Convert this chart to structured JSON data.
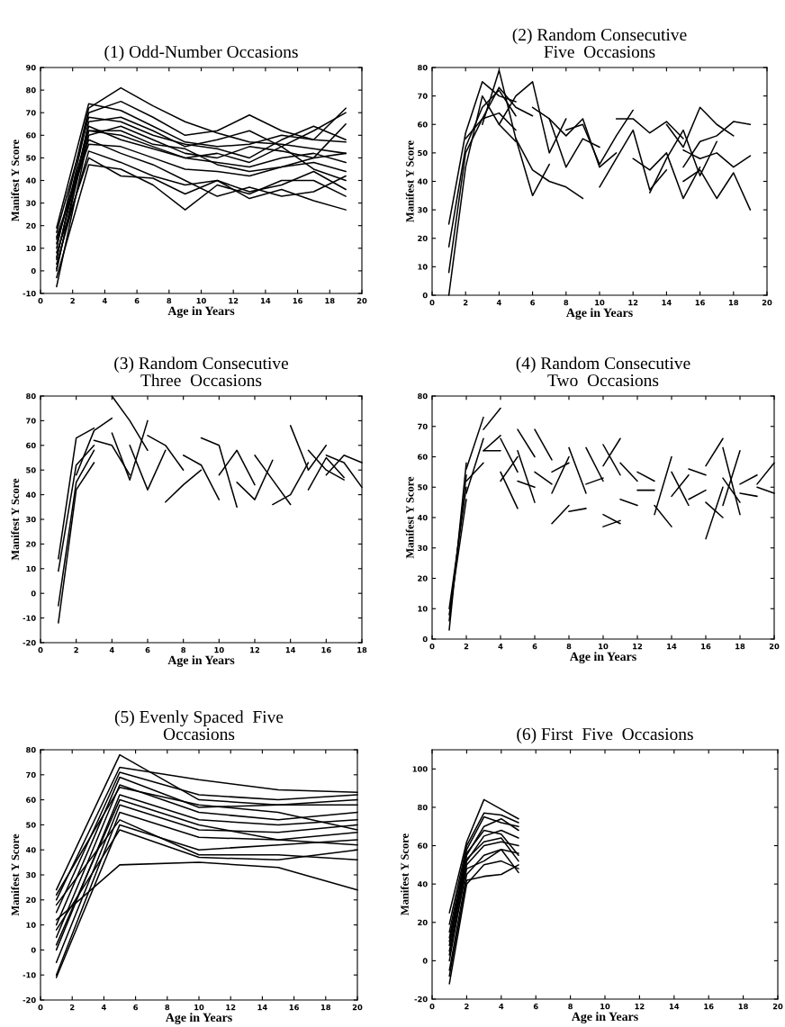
{
  "chart_data": [
    {
      "type": "line",
      "title": "(1) Odd-Number Occasions",
      "xlabel": "Age in Years",
      "ylabel": "Manifest Y Score",
      "xlim": [
        0,
        20
      ],
      "ylim": [
        -10,
        90
      ],
      "xticks": [
        0,
        2,
        4,
        6,
        8,
        10,
        12,
        14,
        16,
        18,
        20
      ],
      "yticks": [
        -10,
        0,
        10,
        20,
        30,
        40,
        50,
        60,
        70,
        80,
        90
      ],
      "series": [
        {
          "color": "#000000",
          "x": [
            1,
            3,
            5,
            7,
            9,
            11,
            13,
            15,
            17,
            19
          ],
          "values": [
            19,
            74,
            71,
            64,
            57,
            55,
            56,
            60,
            58,
            57
          ]
        },
        {
          "color": "#000000",
          "x": [
            1,
            3,
            5,
            7,
            9,
            11,
            13,
            15,
            17,
            19
          ],
          "values": [
            10,
            72,
            81,
            73,
            66,
            61,
            57,
            56,
            54,
            52
          ]
        },
        {
          "color": "#000000",
          "x": [
            1,
            3,
            5,
            7,
            9,
            11,
            13,
            15,
            17,
            19
          ],
          "values": [
            5,
            70,
            75,
            68,
            60,
            62,
            69,
            62,
            58,
            72
          ]
        },
        {
          "color": "#000000",
          "x": [
            1,
            3,
            5,
            7,
            9,
            11,
            13,
            15,
            17,
            19
          ],
          "values": [
            0,
            66,
            68,
            62,
            55,
            58,
            62,
            55,
            62,
            70
          ]
        },
        {
          "color": "#000000",
          "x": [
            1,
            3,
            5,
            7,
            9,
            11,
            13,
            15,
            17,
            19
          ],
          "values": [
            -7,
            60,
            64,
            58,
            52,
            50,
            55,
            53,
            50,
            65
          ]
        },
        {
          "color": "#000000",
          "x": [
            1,
            3,
            5,
            7,
            9,
            11,
            13,
            15,
            17,
            19
          ],
          "values": [
            12,
            62,
            60,
            55,
            50,
            48,
            46,
            50,
            52,
            48
          ]
        },
        {
          "color": "#000000",
          "x": [
            1,
            3,
            5,
            7,
            9,
            11,
            13,
            15,
            17,
            19
          ],
          "values": [
            15,
            56,
            55,
            50,
            45,
            44,
            42,
            46,
            48,
            44
          ]
        },
        {
          "color": "#000000",
          "x": [
            1,
            3,
            5,
            7,
            9,
            11,
            13,
            15,
            17,
            19
          ],
          "values": [
            3,
            53,
            48,
            42,
            38,
            40,
            35,
            38,
            44,
            36
          ]
        },
        {
          "color": "#000000",
          "x": [
            1,
            3,
            5,
            7,
            9,
            11,
            13,
            15,
            17,
            19
          ],
          "values": [
            8,
            50,
            42,
            41,
            34,
            40,
            32,
            36,
            31,
            27
          ]
        },
        {
          "color": "#000000",
          "x": [
            1,
            3,
            5,
            7,
            9,
            11,
            13,
            15,
            17,
            19
          ],
          "values": [
            -3,
            47,
            45,
            38,
            27,
            38,
            34,
            40,
            40,
            33
          ]
        },
        {
          "color": "#000000",
          "x": [
            1,
            3,
            5,
            7,
            9,
            11,
            13,
            15,
            17,
            19
          ],
          "values": [
            14,
            58,
            52,
            47,
            40,
            33,
            37,
            33,
            35,
            42
          ]
        },
        {
          "color": "#000000",
          "x": [
            1,
            3,
            5,
            7,
            9,
            11,
            13,
            15,
            17,
            19
          ],
          "values": [
            6,
            64,
            58,
            54,
            50,
            52,
            48,
            55,
            45,
            40
          ]
        },
        {
          "color": "#000000",
          "x": [
            1,
            3,
            5,
            7,
            9,
            11,
            13,
            15,
            17,
            19
          ],
          "values": [
            17,
            68,
            66,
            60,
            56,
            54,
            50,
            58,
            64,
            58
          ]
        },
        {
          "color": "#000000",
          "x": [
            1,
            3,
            5,
            7,
            9,
            11,
            13,
            15,
            17,
            19
          ],
          "values": [
            1,
            62,
            62,
            56,
            54,
            47,
            44,
            46,
            50,
            52
          ]
        }
      ]
    },
    {
      "type": "line",
      "title": "(2) Random Consecutive\nFive  Occasions",
      "xlabel": "Age in Years",
      "ylabel": "Manifest Y Score",
      "xlim": [
        0,
        20
      ],
      "ylim": [
        0,
        80
      ],
      "xticks": [
        0,
        2,
        4,
        6,
        8,
        10,
        12,
        14,
        16,
        18,
        20
      ],
      "yticks": [
        0,
        10,
        20,
        30,
        40,
        50,
        60,
        70,
        80
      ],
      "series": [
        {
          "color": "#000000",
          "x": [
            1,
            2,
            3,
            4,
            5
          ],
          "values": [
            25,
            57,
            75,
            70,
            68
          ]
        },
        {
          "color": "#000000",
          "x": [
            1,
            2,
            3,
            4,
            5
          ],
          "values": [
            17,
            52,
            66,
            72,
            63
          ]
        },
        {
          "color": "#000000",
          "x": [
            1,
            2,
            3,
            4,
            5
          ],
          "values": [
            8,
            50,
            62,
            64,
            58
          ]
        },
        {
          "color": "#000000",
          "x": [
            1,
            2,
            3,
            4,
            5
          ],
          "values": [
            0,
            45,
            70,
            60,
            54
          ]
        },
        {
          "color": "#000000",
          "x": [
            2,
            3,
            4,
            5,
            6
          ],
          "values": [
            55,
            62,
            73,
            66,
            63
          ]
        },
        {
          "color": "#000000",
          "x": [
            3,
            4,
            5,
            6,
            7
          ],
          "values": [
            60,
            79,
            55,
            35,
            46
          ]
        },
        {
          "color": "#000000",
          "x": [
            4,
            5,
            6,
            7,
            8
          ],
          "values": [
            60,
            70,
            75,
            50,
            62
          ]
        },
        {
          "color": "#000000",
          "x": [
            5,
            6,
            7,
            8,
            9
          ],
          "values": [
            55,
            44,
            40,
            38,
            34
          ]
        },
        {
          "color": "#000000",
          "x": [
            6,
            7,
            8,
            9,
            10
          ],
          "values": [
            66,
            62,
            45,
            55,
            52
          ]
        },
        {
          "color": "#000000",
          "x": [
            7,
            8,
            9,
            10,
            11
          ],
          "values": [
            62,
            56,
            62,
            45,
            50
          ]
        },
        {
          "color": "#000000",
          "x": [
            8,
            9,
            10,
            11,
            12
          ],
          "values": [
            58,
            60,
            46,
            56,
            65
          ]
        },
        {
          "color": "#000000",
          "x": [
            10,
            11,
            12,
            13,
            14
          ],
          "values": [
            38,
            48,
            58,
            37,
            44
          ]
        },
        {
          "color": "#000000",
          "x": [
            11,
            12,
            13,
            14,
            15
          ],
          "values": [
            62,
            62,
            57,
            61,
            55
          ]
        },
        {
          "color": "#000000",
          "x": [
            12,
            13,
            14,
            15,
            16
          ],
          "values": [
            48,
            44,
            50,
            34,
            45
          ]
        },
        {
          "color": "#000000",
          "x": [
            13,
            14,
            15,
            16,
            17
          ],
          "values": [
            36,
            48,
            58,
            42,
            54
          ]
        },
        {
          "color": "#000000",
          "x": [
            14,
            15,
            16,
            17,
            18
          ],
          "values": [
            60,
            52,
            66,
            60,
            56
          ]
        },
        {
          "color": "#000000",
          "x": [
            15,
            16,
            17,
            18,
            19
          ],
          "values": [
            45,
            54,
            56,
            61,
            60
          ]
        },
        {
          "color": "#000000",
          "x": [
            15,
            16,
            17,
            18,
            19
          ],
          "values": [
            40,
            44,
            34,
            43,
            30
          ]
        },
        {
          "color": "#000000",
          "x": [
            15,
            16,
            17,
            18,
            19
          ],
          "values": [
            51,
            48,
            50,
            45,
            49
          ]
        }
      ]
    },
    {
      "type": "line",
      "title": "(3) Random Consecutive\nThree  Occasions",
      "xlabel": "Age in Years",
      "ylabel": "Manifest Y Score",
      "xlim": [
        0,
        18
      ],
      "ylim": [
        -20,
        80
      ],
      "xticks": [
        0,
        2,
        4,
        6,
        8,
        10,
        12,
        14,
        16,
        18
      ],
      "yticks": [
        -20,
        -10,
        0,
        10,
        20,
        30,
        40,
        50,
        60,
        70,
        80
      ],
      "series": [
        {
          "color": "#000000",
          "x": [
            1,
            2,
            3
          ],
          "values": [
            14,
            63,
            67
          ]
        },
        {
          "color": "#000000",
          "x": [
            1,
            2,
            3
          ],
          "values": [
            9,
            52,
            60
          ]
        },
        {
          "color": "#000000",
          "x": [
            1,
            2,
            3
          ],
          "values": [
            -5,
            45,
            58
          ]
        },
        {
          "color": "#000000",
          "x": [
            1,
            2,
            3
          ],
          "values": [
            -12,
            42,
            53
          ]
        },
        {
          "color": "#000000",
          "x": [
            2,
            3,
            4
          ],
          "values": [
            48,
            66,
            71
          ]
        },
        {
          "color": "#000000",
          "x": [
            3,
            4,
            5
          ],
          "values": [
            62,
            60,
            48
          ]
        },
        {
          "color": "#000000",
          "x": [
            4,
            5,
            6
          ],
          "values": [
            80,
            70,
            58
          ]
        },
        {
          "color": "#000000",
          "x": [
            4,
            5,
            6
          ],
          "values": [
            65,
            46,
            70
          ]
        },
        {
          "color": "#000000",
          "x": [
            5,
            6,
            7
          ],
          "values": [
            60,
            42,
            58
          ]
        },
        {
          "color": "#000000",
          "x": [
            6,
            7,
            8
          ],
          "values": [
            64,
            60,
            50
          ]
        },
        {
          "color": "#000000",
          "x": [
            7,
            8,
            9
          ],
          "values": [
            37,
            44,
            50
          ]
        },
        {
          "color": "#000000",
          "x": [
            8,
            9,
            10
          ],
          "values": [
            56,
            52,
            38
          ]
        },
        {
          "color": "#000000",
          "x": [
            9,
            10,
            11
          ],
          "values": [
            63,
            60,
            35
          ]
        },
        {
          "color": "#000000",
          "x": [
            10,
            11,
            12
          ],
          "values": [
            48,
            58,
            44
          ]
        },
        {
          "color": "#000000",
          "x": [
            11,
            12,
            13
          ],
          "values": [
            45,
            38,
            54
          ]
        },
        {
          "color": "#000000",
          "x": [
            12,
            13,
            14
          ],
          "values": [
            56,
            46,
            36
          ]
        },
        {
          "color": "#000000",
          "x": [
            13,
            14,
            15
          ],
          "values": [
            36,
            40,
            53
          ]
        },
        {
          "color": "#000000",
          "x": [
            14,
            15,
            16
          ],
          "values": [
            68,
            50,
            60
          ]
        },
        {
          "color": "#000000",
          "x": [
            15,
            16,
            17
          ],
          "values": [
            42,
            55,
            47
          ]
        },
        {
          "color": "#000000",
          "x": [
            15,
            16,
            17
          ],
          "values": [
            58,
            50,
            46
          ]
        },
        {
          "color": "#000000",
          "x": [
            16,
            17,
            18
          ],
          "values": [
            56,
            53,
            43
          ]
        },
        {
          "color": "#000000",
          "x": [
            16,
            17,
            18
          ],
          "values": [
            48,
            56,
            53
          ]
        }
      ]
    },
    {
      "type": "line",
      "title": "(4) Random Consecutive\nTwo  Occasions",
      "xlabel": "Age in Years",
      "ylabel": "Manifest Y Score",
      "xlim": [
        0,
        20
      ],
      "ylim": [
        0,
        80
      ],
      "xticks": [
        0,
        2,
        4,
        6,
        8,
        10,
        12,
        14,
        16,
        18,
        20
      ],
      "yticks": [
        0,
        10,
        20,
        30,
        40,
        50,
        60,
        70,
        80
      ],
      "series": [
        {
          "color": "#000000",
          "x": [
            1,
            2
          ],
          "values": [
            3,
            58
          ]
        },
        {
          "color": "#000000",
          "x": [
            1,
            2
          ],
          "values": [
            6,
            54
          ]
        },
        {
          "color": "#000000",
          "x": [
            1,
            2
          ],
          "values": [
            10,
            50
          ]
        },
        {
          "color": "#000000",
          "x": [
            1,
            2
          ],
          "values": [
            8,
            46
          ]
        },
        {
          "color": "#000000",
          "x": [
            2,
            3
          ],
          "values": [
            56,
            73
          ]
        },
        {
          "color": "#000000",
          "x": [
            2,
            3
          ],
          "values": [
            52,
            58
          ]
        },
        {
          "color": "#000000",
          "x": [
            2,
            3
          ],
          "values": [
            48,
            66
          ]
        },
        {
          "color": "#000000",
          "x": [
            3,
            4
          ],
          "values": [
            69,
            76
          ]
        },
        {
          "color": "#000000",
          "x": [
            3,
            4
          ],
          "values": [
            62,
            62
          ]
        },
        {
          "color": "#000000",
          "x": [
            3,
            4
          ],
          "values": [
            62,
            67
          ]
        },
        {
          "color": "#000000",
          "x": [
            4,
            5
          ],
          "values": [
            66,
            55
          ]
        },
        {
          "color": "#000000",
          "x": [
            4,
            5
          ],
          "values": [
            55,
            43
          ]
        },
        {
          "color": "#000000",
          "x": [
            4,
            5
          ],
          "values": [
            52,
            60
          ]
        },
        {
          "color": "#000000",
          "x": [
            5,
            6
          ],
          "values": [
            69,
            60
          ]
        },
        {
          "color": "#000000",
          "x": [
            5,
            6
          ],
          "values": [
            62,
            45
          ]
        },
        {
          "color": "#000000",
          "x": [
            5,
            6
          ],
          "values": [
            52,
            50
          ]
        },
        {
          "color": "#000000",
          "x": [
            6,
            7
          ],
          "values": [
            69,
            59
          ]
        },
        {
          "color": "#000000",
          "x": [
            6,
            7
          ],
          "values": [
            55,
            51
          ]
        },
        {
          "color": "#000000",
          "x": [
            7,
            8
          ],
          "values": [
            38,
            44
          ]
        },
        {
          "color": "#000000",
          "x": [
            7,
            8
          ],
          "values": [
            48,
            60
          ]
        },
        {
          "color": "#000000",
          "x": [
            7,
            8
          ],
          "values": [
            55,
            58
          ]
        },
        {
          "color": "#000000",
          "x": [
            8,
            9
          ],
          "values": [
            42,
            43
          ]
        },
        {
          "color": "#000000",
          "x": [
            8,
            9
          ],
          "values": [
            63,
            48
          ]
        },
        {
          "color": "#000000",
          "x": [
            9,
            10
          ],
          "values": [
            63,
            52
          ]
        },
        {
          "color": "#000000",
          "x": [
            9,
            10
          ],
          "values": [
            51,
            53
          ]
        },
        {
          "color": "#000000",
          "x": [
            10,
            11
          ],
          "values": [
            64,
            54
          ]
        },
        {
          "color": "#000000",
          "x": [
            10,
            11
          ],
          "values": [
            41,
            38
          ]
        },
        {
          "color": "#000000",
          "x": [
            10,
            11
          ],
          "values": [
            37,
            39
          ]
        },
        {
          "color": "#000000",
          "x": [
            10,
            11
          ],
          "values": [
            57,
            66
          ]
        },
        {
          "color": "#000000",
          "x": [
            11,
            12
          ],
          "values": [
            58,
            52
          ]
        },
        {
          "color": "#000000",
          "x": [
            11,
            12
          ],
          "values": [
            46,
            44
          ]
        },
        {
          "color": "#000000",
          "x": [
            12,
            13
          ],
          "values": [
            55,
            52
          ]
        },
        {
          "color": "#000000",
          "x": [
            12,
            13
          ],
          "values": [
            49,
            49
          ]
        },
        {
          "color": "#000000",
          "x": [
            13,
            14
          ],
          "values": [
            44,
            37
          ]
        },
        {
          "color": "#000000",
          "x": [
            13,
            14
          ],
          "values": [
            41,
            60
          ]
        },
        {
          "color": "#000000",
          "x": [
            14,
            15
          ],
          "values": [
            47,
            54
          ]
        },
        {
          "color": "#000000",
          "x": [
            14,
            15
          ],
          "values": [
            55,
            44
          ]
        },
        {
          "color": "#000000",
          "x": [
            15,
            16
          ],
          "values": [
            56,
            54
          ]
        },
        {
          "color": "#000000",
          "x": [
            15,
            16
          ],
          "values": [
            46,
            49
          ]
        },
        {
          "color": "#000000",
          "x": [
            16,
            17
          ],
          "values": [
            33,
            50
          ]
        },
        {
          "color": "#000000",
          "x": [
            16,
            17
          ],
          "values": [
            57,
            66
          ]
        },
        {
          "color": "#000000",
          "x": [
            16,
            17
          ],
          "values": [
            45,
            40
          ]
        },
        {
          "color": "#000000",
          "x": [
            17,
            18
          ],
          "values": [
            63,
            41
          ]
        },
        {
          "color": "#000000",
          "x": [
            17,
            18
          ],
          "values": [
            44,
            62
          ]
        },
        {
          "color": "#000000",
          "x": [
            17,
            18
          ],
          "values": [
            53,
            45
          ]
        },
        {
          "color": "#000000",
          "x": [
            18,
            19
          ],
          "values": [
            51,
            54
          ]
        },
        {
          "color": "#000000",
          "x": [
            18,
            19
          ],
          "values": [
            48,
            47
          ]
        },
        {
          "color": "#000000",
          "x": [
            19,
            20
          ],
          "values": [
            51,
            58
          ]
        },
        {
          "color": "#000000",
          "x": [
            19,
            20
          ],
          "values": [
            50,
            48
          ]
        }
      ]
    },
    {
      "type": "line",
      "title": "(5) Evenly Spaced  Five\nOccasions",
      "xlabel": "Age in Years",
      "ylabel": "Manifest Y Score",
      "xlim": [
        0,
        20
      ],
      "ylim": [
        -20,
        80
      ],
      "xticks": [
        0,
        2,
        4,
        6,
        8,
        10,
        12,
        14,
        16,
        18,
        20
      ],
      "yticks": [
        -20,
        -10,
        0,
        10,
        20,
        30,
        40,
        50,
        60,
        70,
        80
      ],
      "series": [
        {
          "color": "#000000",
          "x": [
            1,
            5,
            10,
            15,
            20
          ],
          "values": [
            24,
            78,
            60,
            58,
            60
          ]
        },
        {
          "color": "#000000",
          "x": [
            1,
            5,
            10,
            15,
            20
          ],
          "values": [
            20,
            73,
            68,
            64,
            63
          ]
        },
        {
          "color": "#000000",
          "x": [
            1,
            5,
            10,
            15,
            20
          ],
          "values": [
            15,
            71,
            62,
            60,
            62
          ]
        },
        {
          "color": "#000000",
          "x": [
            1,
            5,
            10,
            15,
            20
          ],
          "values": [
            10,
            69,
            57,
            58,
            58
          ]
        },
        {
          "color": "#000000",
          "x": [
            1,
            5,
            10,
            15,
            20
          ],
          "values": [
            5,
            66,
            55,
            52,
            55
          ]
        },
        {
          "color": "#000000",
          "x": [
            1,
            5,
            10,
            15,
            20
          ],
          "values": [
            0,
            62,
            52,
            50,
            52
          ]
        },
        {
          "color": "#000000",
          "x": [
            1,
            5,
            10,
            15,
            20
          ],
          "values": [
            -5,
            58,
            48,
            47,
            50
          ]
        },
        {
          "color": "#000000",
          "x": [
            1,
            5,
            10,
            15,
            20
          ],
          "values": [
            -10,
            55,
            45,
            44,
            47
          ]
        },
        {
          "color": "#000000",
          "x": [
            1,
            5,
            10,
            15,
            20
          ],
          "values": [
            -11,
            50,
            40,
            42,
            44
          ]
        },
        {
          "color": "#000000",
          "x": [
            1,
            5,
            10,
            15,
            20
          ],
          "values": [
            8,
            48,
            37,
            36,
            40
          ]
        },
        {
          "color": "#000000",
          "x": [
            1,
            5,
            10,
            15,
            20
          ],
          "values": [
            12,
            34,
            35,
            33,
            24
          ]
        },
        {
          "color": "#000000",
          "x": [
            1,
            5,
            10,
            15,
            20
          ],
          "values": [
            18,
            52,
            38,
            38,
            36
          ]
        },
        {
          "color": "#000000",
          "x": [
            1,
            5,
            10,
            15,
            20
          ],
          "values": [
            2,
            60,
            50,
            44,
            42
          ]
        },
        {
          "color": "#000000",
          "x": [
            1,
            5,
            10,
            15,
            20
          ],
          "values": [
            22,
            65,
            58,
            55,
            48
          ]
        }
      ]
    },
    {
      "type": "line",
      "title": "(6) First  Five  Occasions",
      "xlabel": "Age in Years",
      "ylabel": "Manifest Y Score",
      "xlim": [
        0,
        20
      ],
      "ylim": [
        -20,
        110
      ],
      "xticks": [
        0,
        2,
        4,
        6,
        8,
        10,
        12,
        14,
        16,
        18,
        20
      ],
      "yticks": [
        -20,
        0,
        20,
        40,
        60,
        80,
        100
      ],
      "series": [
        {
          "color": "#000000",
          "x": [
            1,
            2,
            3,
            4,
            5
          ],
          "values": [
            25,
            62,
            84,
            79,
            74
          ]
        },
        {
          "color": "#000000",
          "x": [
            1,
            2,
            3,
            4,
            5
          ],
          "values": [
            19,
            60,
            77,
            76,
            72
          ]
        },
        {
          "color": "#000000",
          "x": [
            1,
            2,
            3,
            4,
            5
          ],
          "values": [
            15,
            58,
            75,
            72,
            70
          ]
        },
        {
          "color": "#000000",
          "x": [
            1,
            2,
            3,
            4,
            5
          ],
          "values": [
            10,
            55,
            70,
            74,
            68
          ]
        },
        {
          "color": "#000000",
          "x": [
            1,
            2,
            3,
            4,
            5
          ],
          "values": [
            5,
            52,
            65,
            68,
            64
          ]
        },
        {
          "color": "#000000",
          "x": [
            1,
            2,
            3,
            4,
            5
          ],
          "values": [
            0,
            50,
            60,
            62,
            60
          ]
        },
        {
          "color": "#000000",
          "x": [
            1,
            2,
            3,
            4,
            5
          ],
          "values": [
            -5,
            45,
            55,
            58,
            56
          ]
        },
        {
          "color": "#000000",
          "x": [
            1,
            2,
            3,
            4,
            5
          ],
          "values": [
            -12,
            40,
            50,
            52,
            48
          ]
        },
        {
          "color": "#000000",
          "x": [
            1,
            2,
            3,
            4,
            5
          ],
          "values": [
            -8,
            42,
            44,
            45,
            50
          ]
        },
        {
          "color": "#000000",
          "x": [
            1,
            2,
            3,
            4,
            5
          ],
          "values": [
            3,
            48,
            52,
            58,
            46
          ]
        },
        {
          "color": "#000000",
          "x": [
            1,
            2,
            3,
            4,
            5
          ],
          "values": [
            12,
            56,
            68,
            66,
            55
          ]
        },
        {
          "color": "#000000",
          "x": [
            1,
            2,
            3,
            4,
            5
          ],
          "values": [
            8,
            53,
            62,
            64,
            52
          ]
        }
      ]
    }
  ]
}
